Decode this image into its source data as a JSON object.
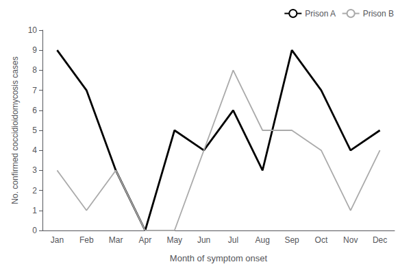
{
  "chart_data": {
    "type": "line",
    "categories": [
      "Jan",
      "Feb",
      "Mar",
      "Apr",
      "May",
      "Jun",
      "Jul",
      "Aug",
      "Sep",
      "Oct",
      "Nov",
      "Dec"
    ],
    "series": [
      {
        "name": "Prison A",
        "color": "#000000",
        "values": [
          9,
          7,
          3,
          0,
          5,
          4,
          6,
          3,
          9,
          7,
          4,
          5
        ]
      },
      {
        "name": "Prison B",
        "color": "#aaaaaa",
        "values": [
          3,
          1,
          3,
          0,
          0,
          4,
          8,
          5,
          5,
          4,
          1,
          4
        ]
      }
    ],
    "xlabel": "Month of symptom onset",
    "ylabel": "No. confirmed coccidioidomycosis cases",
    "ylim": [
      0,
      10
    ],
    "yticks": [
      0,
      1,
      2,
      3,
      4,
      5,
      6,
      7,
      8,
      9,
      10
    ],
    "grid": false,
    "legend": "upper right"
  }
}
